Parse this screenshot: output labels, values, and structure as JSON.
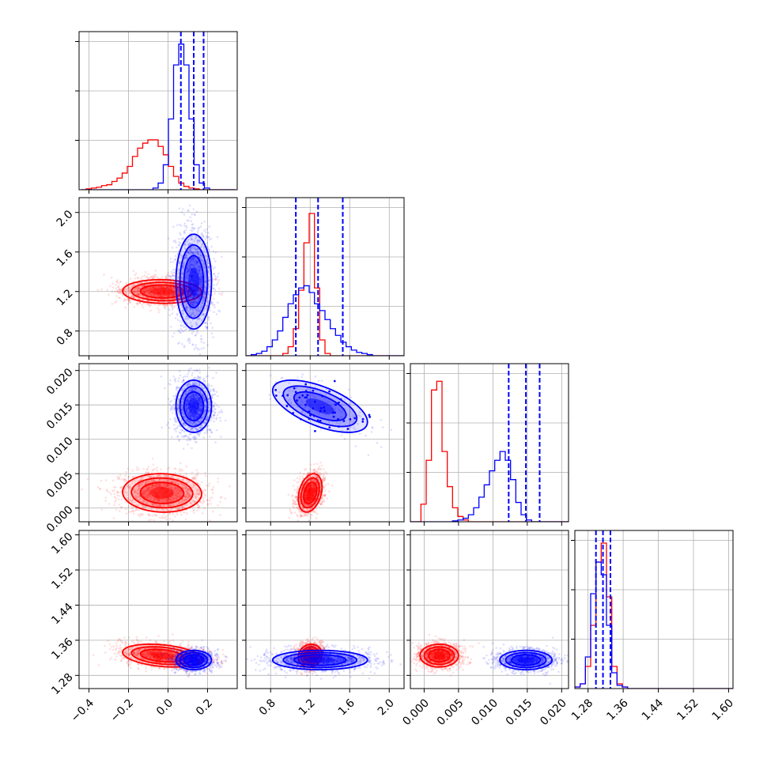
{
  "chart_data": {
    "type": "corner",
    "description_free": true,
    "parameters": [
      {
        "range": [
          -0.45,
          0.35
        ],
        "ticks": [
          -0.4,
          -0.2,
          0.0,
          0.2
        ],
        "tick_labels": [
          "−0.4",
          "−0.2",
          "0.0",
          "0.2"
        ]
      },
      {
        "range": [
          0.55,
          2.15
        ],
        "ticks": [
          0.8,
          1.2,
          1.6,
          2.0
        ],
        "tick_labels": [
          "0.8",
          "1.2",
          "1.6",
          "2.0"
        ]
      },
      {
        "range": [
          -0.002,
          0.021
        ],
        "ticks": [
          0.0,
          0.005,
          0.01,
          0.015,
          0.02
        ],
        "tick_labels": [
          "0.000",
          "0.005",
          "0.010",
          "0.015",
          "0.020"
        ]
      },
      {
        "range": [
          1.25,
          1.61
        ],
        "ticks": [
          1.28,
          1.36,
          1.44,
          1.52,
          1.6
        ],
        "tick_labels": [
          "1.28",
          "1.36",
          "1.44",
          "1.52",
          "1.60"
        ]
      }
    ],
    "series": [
      {
        "color": "#ff0000",
        "means": [
          -0.03,
          1.2,
          0.0022,
          1.325
        ],
        "sds": [
          0.1,
          0.06,
          0.0014,
          0.013
        ],
        "correlations": {
          "0-1": -0.05,
          "0-2": -0.05,
          "1-2": 0.3,
          "0-3": -0.3,
          "1-3": 0.1,
          "2-3": 0.0
        },
        "histograms": [
          {
            "edges": [
              -0.44,
              0.34
            ],
            "counts": [
              0,
              1,
              2,
              3,
              5,
              6,
              10,
              14,
              20,
              28,
              40,
              50,
              56,
              60,
              60,
              52,
              42,
              28,
              16,
              8,
              4,
              2,
              1,
              0,
              0,
              0,
              0,
              0,
              0,
              0
            ]
          },
          {
            "edges": [
              0.55,
              2.15
            ],
            "counts": [
              0,
              0,
              0,
              0,
              0,
              0,
              0,
              2,
              8,
              24,
              58,
              100,
              126,
              60,
              14,
              2,
              0,
              0,
              0,
              0,
              0,
              0,
              0,
              0,
              0,
              0,
              0,
              0,
              0,
              0
            ]
          },
          {
            "edges": [
              -0.002,
              0.021
            ],
            "counts": [
              0,
              0,
              20,
              70,
              150,
              160,
              80,
              40,
              16,
              6,
              2,
              0,
              0,
              0,
              0,
              0,
              0,
              0,
              0,
              0,
              0,
              0,
              0,
              0,
              0,
              0,
              0,
              0,
              0,
              0
            ]
          },
          {
            "edges": [
              1.25,
              1.61
            ],
            "counts": [
              1,
              3,
              14,
              40,
              80,
              92,
              58,
              14,
              3,
              1,
              0,
              0,
              0,
              0,
              0,
              0,
              0,
              0,
              0,
              0,
              0,
              0,
              0,
              0,
              0,
              0,
              0,
              0,
              0,
              0
            ]
          }
        ],
        "quantile_lines": []
      },
      {
        "color": "#0000ff",
        "means": [
          0.13,
          1.3,
          0.0148,
          1.315
        ],
        "sds": [
          0.045,
          0.24,
          0.0019,
          0.011
        ],
        "correlations": {
          "0-1": 0.0,
          "0-2": 0.0,
          "1-2": -0.6,
          "0-3": 0.0,
          "1-3": 0.0,
          "2-3": 0.0
        },
        "histograms": [
          {
            "edges": [
              -0.44,
              0.34
            ],
            "counts": [
              0,
              0,
              0,
              0,
              0,
              0,
              0,
              0,
              0,
              0,
              0,
              0,
              0,
              0,
              2,
              8,
              30,
              85,
              150,
              175,
              150,
              85,
              30,
              8,
              2,
              0,
              0,
              0,
              0,
              0
            ]
          },
          {
            "edges": [
              0.55,
              2.15
            ],
            "counts": [
              0,
              1,
              2,
              4,
              8,
              14,
              22,
              34,
              46,
              54,
              60,
              62,
              56,
              46,
              40,
              32,
              24,
              18,
              12,
              8,
              5,
              3,
              2,
              1,
              0,
              0,
              0,
              0,
              0,
              0
            ]
          },
          {
            "edges": [
              -0.002,
              0.021
            ],
            "counts": [
              0,
              0,
              0,
              0,
              0,
              0,
              0,
              0,
              1,
              2,
              4,
              8,
              16,
              28,
              42,
              58,
              70,
              80,
              70,
              48,
              22,
              8,
              2,
              0,
              0,
              0,
              0,
              0,
              0,
              0
            ]
          },
          {
            "edges": [
              1.25,
              1.61
            ],
            "counts": [
              1,
              3,
              20,
              60,
              80,
              72,
              40,
              10,
              2,
              1,
              0,
              0,
              0,
              0,
              0,
              0,
              0,
              0,
              0,
              0,
              0,
              0,
              0,
              0,
              0,
              0,
              0,
              0,
              0,
              0
            ]
          }
        ],
        "quantile_lines": [
          [
            0.065,
            0.13,
            0.18
          ],
          [
            1.055,
            1.28,
            1.53
          ],
          [
            0.0123,
            0.0148,
            0.0168
          ],
          [
            1.298,
            1.314,
            1.331
          ]
        ]
      }
    ],
    "hist_ylim": [
      [
        0,
        190
      ],
      [
        0,
        140
      ],
      [
        0,
        180
      ],
      [
        0,
        100
      ]
    ],
    "grid": true,
    "legend": "none"
  }
}
